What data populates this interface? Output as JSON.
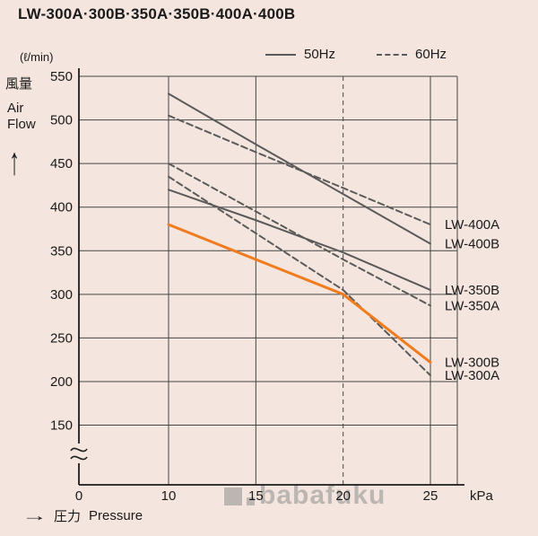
{
  "title": "LW-300A·300B·350A·350B·400A·400B",
  "legend": {
    "hz50": "50Hz",
    "hz60": "60Hz"
  },
  "y_axis": {
    "unit": "(ℓ/min)",
    "label_jp": "風量",
    "label_en_line1": "Air",
    "label_en_line2": "Flow",
    "arrow": "↑",
    "ticks": [
      550,
      500,
      450,
      400,
      350,
      300,
      250,
      200,
      150
    ],
    "origin": "0"
  },
  "x_axis": {
    "ticks": [
      10,
      15,
      20,
      25
    ],
    "unit": "kPa",
    "origin": "0",
    "arrow": "→",
    "label_jp": "圧力",
    "label_en": "Pressure"
  },
  "watermark": "babafuku",
  "colors": {
    "background": "#f4e6df",
    "grid": "#454545",
    "axis": "#1c1c1c",
    "series_gray": "#5a5a5a",
    "series_orange": "#f07c1e",
    "text": "#1a1a1a",
    "watermark": "#8f8f8f"
  },
  "chart_data": {
    "type": "line",
    "x": [
      10,
      15,
      20,
      25
    ],
    "x_unit": "kPa",
    "y_unit": "ℓ/min",
    "xlabel": "圧力 Pressure",
    "ylabel": "風量 Air Flow",
    "ylim": [
      150,
      550
    ],
    "xlim": [
      0,
      27
    ],
    "grid": true,
    "reference_line_x": 20,
    "legend_position": "top",
    "series": [
      {
        "name": "LW-400B",
        "frequency": "50Hz",
        "style": "solid",
        "color": "#5a5a5a",
        "values": [
          530,
          472,
          415,
          358
        ]
      },
      {
        "name": "LW-400A",
        "frequency": "60Hz",
        "style": "dashed",
        "color": "#5a5a5a",
        "values": [
          505,
          463,
          422,
          380
        ]
      },
      {
        "name": "LW-350B",
        "frequency": "50Hz",
        "style": "solid",
        "color": "#5a5a5a",
        "values": [
          420,
          385,
          348,
          305
        ]
      },
      {
        "name": "LW-350A",
        "frequency": "60Hz",
        "style": "dashed",
        "color": "#5a5a5a",
        "values": [
          450,
          395,
          340,
          287
        ]
      },
      {
        "name": "LW-300B",
        "frequency": "50Hz",
        "style": "solid",
        "color": "#f07c1e",
        "values": [
          380,
          340,
          300,
          222
        ]
      },
      {
        "name": "LW-300A",
        "frequency": "60Hz",
        "style": "dashed",
        "color": "#5a5a5a",
        "values": [
          435,
          370,
          305,
          207
        ]
      }
    ]
  }
}
